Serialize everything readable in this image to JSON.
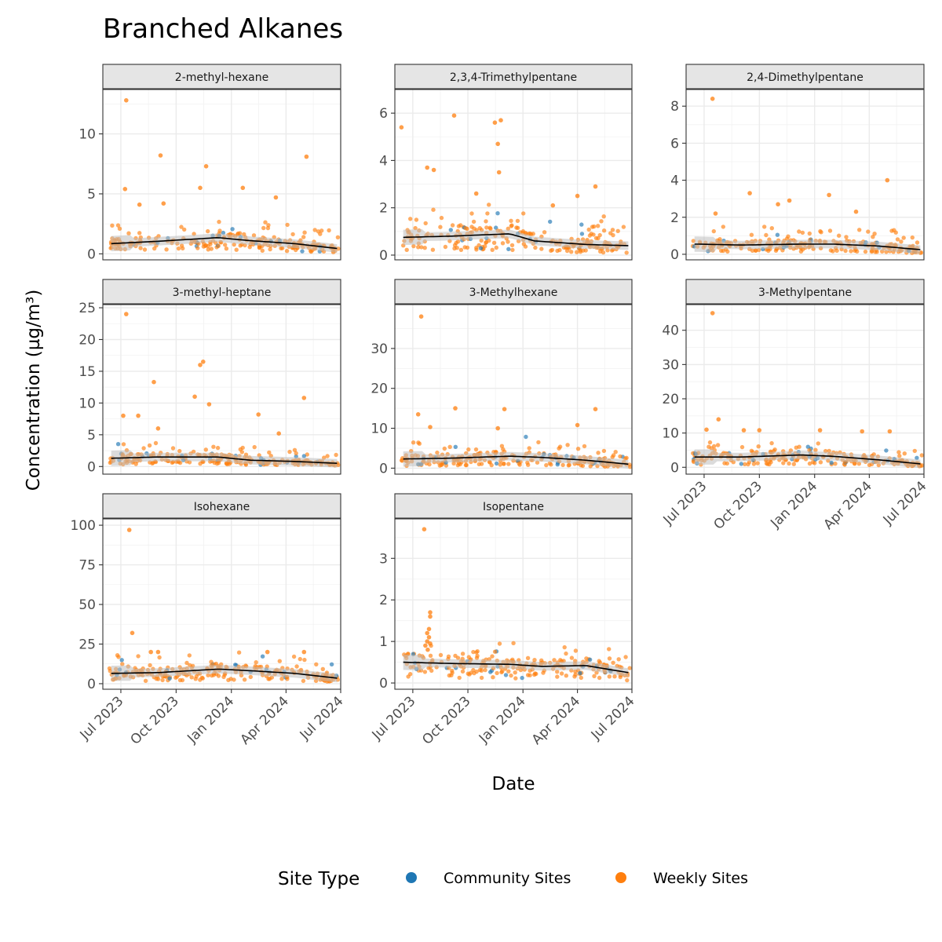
{
  "title": "Branched Alkanes",
  "colors": {
    "Community Sites": "#1f77b4",
    "Weekly Sites": "#ff7f0e",
    "trend": "#000000",
    "ribbon": "#bdbdbd",
    "strip": "#e5e5e5",
    "grid": "#ebebeb"
  },
  "chart_data": {
    "type": "scatter",
    "title": "Branched Alkanes",
    "xlabel": "Date",
    "ylabel": "Concentration (µg/m³)",
    "x_range": [
      "2023-06-01",
      "2024-07-01"
    ],
    "x_ticks": [
      "2023-07-01",
      "2023-10-01",
      "2024-01-01",
      "2024-04-01",
      "2024-07-01"
    ],
    "x_tick_labels": [
      "Jul 2023",
      "Oct 2023",
      "Jan 2024",
      "Apr 2024",
      "Jul 2024"
    ],
    "legend": {
      "title": "Site Type",
      "position": "bottom",
      "entries": [
        "Community Sites",
        "Weekly Sites"
      ]
    },
    "grid": true,
    "panels": [
      {
        "name": "2-methyl-hexane",
        "ylim": [
          -0.5,
          13.7
        ],
        "yticks": [
          0,
          5,
          10
        ],
        "trend": [
          [
            "2023-06-15",
            0.85
          ],
          [
            "2023-09-01",
            1.05
          ],
          [
            "2023-12-10",
            1.35
          ],
          [
            "2024-02-01",
            1.1
          ],
          [
            "2024-04-15",
            0.85
          ],
          [
            "2024-06-25",
            0.45
          ]
        ],
        "highlights": [
          [
            "2023-07-10",
            12.8
          ],
          [
            "2023-09-05",
            8.2
          ],
          [
            "2023-11-20",
            7.3
          ],
          [
            "2024-05-05",
            8.1
          ],
          [
            "2023-11-10",
            5.5
          ],
          [
            "2023-07-08",
            5.4
          ],
          [
            "2024-01-20",
            5.5
          ],
          [
            "2024-03-15",
            4.7
          ],
          [
            "2023-08-01",
            4.1
          ],
          [
            "2023-09-10",
            4.2
          ]
        ],
        "typical": 1.0,
        "spread": 0.8
      },
      {
        "name": "2,3,4-Trimethylpentane",
        "ylim": [
          -0.2,
          7.0
        ],
        "yticks": [
          0,
          2,
          4,
          6
        ],
        "trend": [
          [
            "2023-06-15",
            0.75
          ],
          [
            "2023-09-01",
            0.8
          ],
          [
            "2023-12-10",
            0.9
          ],
          [
            "2024-01-20",
            0.6
          ],
          [
            "2024-04-15",
            0.45
          ],
          [
            "2024-06-25",
            0.4
          ]
        ],
        "highlights": [
          [
            "2023-06-12",
            5.4
          ],
          [
            "2023-09-08",
            5.9
          ],
          [
            "2023-11-15",
            5.6
          ],
          [
            "2023-11-25",
            5.7
          ],
          [
            "2023-11-20",
            4.7
          ],
          [
            "2023-11-22",
            3.5
          ],
          [
            "2023-07-25",
            3.7
          ],
          [
            "2023-08-05",
            3.6
          ],
          [
            "2023-10-15",
            2.6
          ],
          [
            "2024-05-01",
            2.9
          ],
          [
            "2024-04-01",
            2.5
          ],
          [
            "2024-02-20",
            2.1
          ]
        ],
        "typical": 0.6,
        "spread": 0.5
      },
      {
        "name": "2,4-Dimethylpentane",
        "ylim": [
          -0.3,
          8.9
        ],
        "yticks": [
          0,
          2,
          4,
          6,
          8
        ],
        "trend": [
          [
            "2023-06-15",
            0.55
          ],
          [
            "2023-09-01",
            0.5
          ],
          [
            "2023-12-10",
            0.55
          ],
          [
            "2024-02-01",
            0.55
          ],
          [
            "2024-04-15",
            0.45
          ],
          [
            "2024-06-25",
            0.25
          ]
        ],
        "highlights": [
          [
            "2023-07-15",
            8.4
          ],
          [
            "2023-09-15",
            3.3
          ],
          [
            "2024-01-25",
            3.2
          ],
          [
            "2024-05-01",
            4.0
          ],
          [
            "2023-11-20",
            2.9
          ],
          [
            "2024-03-10",
            2.3
          ],
          [
            "2023-07-20",
            2.2
          ],
          [
            "2023-11-01",
            2.7
          ]
        ],
        "typical": 0.45,
        "spread": 0.4
      },
      {
        "name": "3-methyl-heptane",
        "ylim": [
          -1.2,
          25.5
        ],
        "yticks": [
          0,
          5,
          10,
          15,
          20,
          25
        ],
        "trend": [
          [
            "2023-06-15",
            1.3
          ],
          [
            "2023-09-01",
            1.5
          ],
          [
            "2023-12-10",
            1.5
          ],
          [
            "2024-02-01",
            1.0
          ],
          [
            "2024-04-15",
            0.8
          ],
          [
            "2024-06-25",
            0.5
          ]
        ],
        "highlights": [
          [
            "2023-07-10",
            24.0
          ],
          [
            "2023-11-15",
            16.5
          ],
          [
            "2023-11-10",
            16.0
          ],
          [
            "2023-08-25",
            13.3
          ],
          [
            "2023-11-01",
            11.0
          ],
          [
            "2023-11-25",
            9.8
          ],
          [
            "2024-05-01",
            10.8
          ],
          [
            "2024-02-15",
            8.2
          ],
          [
            "2023-07-05",
            8.0
          ],
          [
            "2023-07-30",
            8.0
          ],
          [
            "2023-09-01",
            6.0
          ],
          [
            "2024-03-20",
            5.2
          ]
        ],
        "typical": 1.0,
        "spread": 0.9
      },
      {
        "name": "3-Methylhexane",
        "ylim": [
          -1.5,
          41.0
        ],
        "yticks": [
          0,
          10,
          20,
          30
        ],
        "trend": [
          [
            "2023-06-15",
            2.3
          ],
          [
            "2023-09-01",
            2.5
          ],
          [
            "2023-12-10",
            3.0
          ],
          [
            "2024-02-01",
            2.7
          ],
          [
            "2024-04-15",
            2.0
          ],
          [
            "2024-06-25",
            1.0
          ]
        ],
        "highlights": [
          [
            "2023-07-15",
            38.0
          ],
          [
            "2023-07-10",
            13.5
          ],
          [
            "2023-09-10",
            15.0
          ],
          [
            "2023-12-01",
            14.8
          ],
          [
            "2024-05-01",
            14.8
          ],
          [
            "2024-04-01",
            10.8
          ],
          [
            "2023-11-20",
            10.0
          ],
          [
            "2023-07-30",
            10.3
          ]
        ],
        "typical": 2.0,
        "spread": 1.7
      },
      {
        "name": "3-Methylpentane",
        "ylim": [
          -2.0,
          47.5
        ],
        "yticks": [
          0,
          10,
          20,
          30,
          40
        ],
        "trend": [
          [
            "2023-06-15",
            3.0
          ],
          [
            "2023-09-01",
            3.0
          ],
          [
            "2023-12-10",
            3.6
          ],
          [
            "2024-02-01",
            3.2
          ],
          [
            "2024-04-15",
            2.2
          ],
          [
            "2024-06-25",
            1.0
          ]
        ],
        "highlights": [
          [
            "2023-07-15",
            45.0
          ],
          [
            "2023-07-25",
            14.0
          ],
          [
            "2023-09-05",
            10.8
          ],
          [
            "2023-10-01",
            10.8
          ],
          [
            "2024-01-10",
            10.8
          ],
          [
            "2024-03-20",
            10.5
          ],
          [
            "2024-05-05",
            10.5
          ],
          [
            "2023-07-05",
            11.0
          ]
        ],
        "typical": 2.5,
        "spread": 2.0
      },
      {
        "name": "Isohexane",
        "ylim": [
          -3.5,
          104.0
        ],
        "yticks": [
          0,
          25,
          50,
          75,
          100
        ],
        "trend": [
          [
            "2023-06-15",
            6.5
          ],
          [
            "2023-09-01",
            7.0
          ],
          [
            "2023-12-10",
            9.2
          ],
          [
            "2024-02-01",
            8.2
          ],
          [
            "2024-04-15",
            6.5
          ],
          [
            "2024-06-25",
            3.5
          ]
        ],
        "highlights": [
          [
            "2023-07-15",
            97.0
          ],
          [
            "2023-07-20",
            32.0
          ],
          [
            "2023-08-20",
            20.0
          ],
          [
            "2023-09-01",
            20.0
          ],
          [
            "2024-03-01",
            20.0
          ],
          [
            "2024-05-01",
            20.0
          ]
        ],
        "typical": 6.0,
        "spread": 4.0
      },
      {
        "name": "Isopentane",
        "ylim": [
          -0.15,
          3.95
        ],
        "yticks": [
          0,
          1,
          2,
          3
        ],
        "trend": [
          [
            "2023-06-15",
            0.5
          ],
          [
            "2023-09-01",
            0.47
          ],
          [
            "2023-12-10",
            0.45
          ],
          [
            "2024-02-01",
            0.4
          ],
          [
            "2024-04-15",
            0.42
          ],
          [
            "2024-06-25",
            0.25
          ]
        ],
        "highlights": [
          [
            "2023-07-20",
            3.7
          ],
          [
            "2023-07-30",
            1.7
          ],
          [
            "2023-07-30",
            1.6
          ],
          [
            "2023-07-28",
            1.3
          ],
          [
            "2023-07-25",
            1.2
          ],
          [
            "2023-07-28",
            1.1
          ],
          [
            "2023-07-25",
            1.0
          ],
          [
            "2023-07-30",
            0.95
          ],
          [
            "2023-07-22",
            0.9
          ],
          [
            "2023-07-26",
            0.8
          ]
        ],
        "typical": 0.38,
        "spread": 0.2
      }
    ]
  }
}
